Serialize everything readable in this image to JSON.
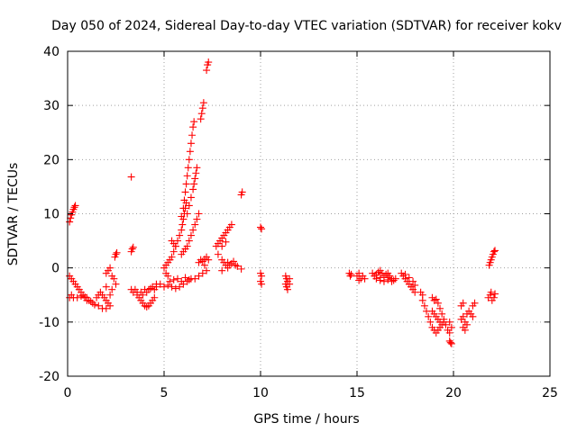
{
  "chart_data": {
    "type": "scatter",
    "title": "Day 050 of 2024, Sidereal Day-to-day VTEC variation (SDTVAR) for receiver kokv",
    "xlabel": "GPS time / hours",
    "ylabel": "SDTVAR / TECUs",
    "xlim": [
      0,
      25
    ],
    "ylim": [
      -20,
      40
    ],
    "xticks": [
      "0",
      "5",
      "10",
      "15",
      "20",
      "25"
    ],
    "yticks": [
      "-20",
      "-10",
      "0",
      "10",
      "20",
      "30",
      "40"
    ],
    "grid": true,
    "marker": "+",
    "color": "#ff0000",
    "series": [
      {
        "name": "SDTVAR",
        "points": [
          [
            0.1,
            8.5
          ],
          [
            0.15,
            9.2
          ],
          [
            0.2,
            9.8
          ],
          [
            0.25,
            10.3
          ],
          [
            0.3,
            10.8
          ],
          [
            0.35,
            11.2
          ],
          [
            0.4,
            11.5
          ],
          [
            0.1,
            -1.5
          ],
          [
            0.2,
            -2
          ],
          [
            0.3,
            -2.5
          ],
          [
            0.4,
            -3
          ],
          [
            0.5,
            -3.5
          ],
          [
            0.6,
            -4
          ],
          [
            0.7,
            -4.5
          ],
          [
            0.8,
            -5
          ],
          [
            0.9,
            -5.5
          ],
          [
            1.0,
            -6
          ],
          [
            0.1,
            -5.5
          ],
          [
            0.2,
            -5
          ],
          [
            0.3,
            -5.5
          ],
          [
            0.5,
            -5.5
          ],
          [
            0.7,
            -5.2
          ],
          [
            0.9,
            -5.4
          ],
          [
            1.0,
            -5.5
          ],
          [
            1.1,
            -6
          ],
          [
            1.2,
            -6.2
          ],
          [
            1.3,
            -6.5
          ],
          [
            1.4,
            -6.8
          ],
          [
            1.5,
            -5.5
          ],
          [
            1.6,
            -5
          ],
          [
            1.7,
            -4.5
          ],
          [
            1.8,
            -5
          ],
          [
            1.9,
            -5.5
          ],
          [
            2.0,
            -6
          ],
          [
            2.1,
            -6.5
          ],
          [
            1.6,
            -7
          ],
          [
            1.8,
            -7.5
          ],
          [
            2.0,
            -7.5
          ],
          [
            2.2,
            -7
          ],
          [
            2.0,
            -1
          ],
          [
            2.1,
            -0.5
          ],
          [
            2.2,
            0
          ],
          [
            2.3,
            -1.5
          ],
          [
            2.4,
            -2
          ],
          [
            2.5,
            -3
          ],
          [
            2.45,
            2
          ],
          [
            2.5,
            2.5
          ],
          [
            2.55,
            2.8
          ],
          [
            2.3,
            -4
          ],
          [
            2.2,
            -5
          ],
          [
            2.0,
            -3.5
          ],
          [
            3.3,
            16.8
          ],
          [
            3.3,
            3
          ],
          [
            3.35,
            3.5
          ],
          [
            3.4,
            3.8
          ],
          [
            3.3,
            -4
          ],
          [
            3.4,
            -4.5
          ],
          [
            3.5,
            -4
          ],
          [
            3.6,
            -4.5
          ],
          [
            3.6,
            -5
          ],
          [
            3.7,
            -5.5
          ],
          [
            3.8,
            -6
          ],
          [
            3.9,
            -6.5
          ],
          [
            4.0,
            -7
          ],
          [
            4.1,
            -7.2
          ],
          [
            4.2,
            -7
          ],
          [
            4.3,
            -6.5
          ],
          [
            4.4,
            -6
          ],
          [
            4.5,
            -5.5
          ],
          [
            3.8,
            -4.5
          ],
          [
            3.9,
            -5
          ],
          [
            4.0,
            -4
          ],
          [
            4.1,
            -4.5
          ],
          [
            4.2,
            -4
          ],
          [
            4.3,
            -3.8
          ],
          [
            4.4,
            -3.5
          ],
          [
            4.5,
            -4
          ],
          [
            4.6,
            -3.5
          ],
          [
            5.0,
            0
          ],
          [
            5.1,
            0.5
          ],
          [
            5.2,
            1
          ],
          [
            5.3,
            1.5
          ],
          [
            5.4,
            2
          ],
          [
            5.5,
            3
          ],
          [
            5.6,
            4
          ],
          [
            5.1,
            -1
          ],
          [
            5.2,
            -1.5
          ],
          [
            4.6,
            -3
          ],
          [
            4.8,
            -3
          ],
          [
            5.0,
            -3.5
          ],
          [
            5.2,
            -3.2
          ],
          [
            5.4,
            -3.5
          ],
          [
            5.6,
            -3.8
          ],
          [
            5.8,
            -3.5
          ],
          [
            6.0,
            -3
          ],
          [
            6.2,
            -2.5
          ],
          [
            6.4,
            -2
          ],
          [
            6.6,
            -2
          ],
          [
            6.8,
            -1.5
          ],
          [
            7.0,
            -1
          ],
          [
            7.2,
            -0.5
          ],
          [
            5.3,
            -2.5
          ],
          [
            5.5,
            -2.2
          ],
          [
            5.7,
            -2
          ],
          [
            5.9,
            -2.5
          ],
          [
            6.1,
            -1.8
          ],
          [
            6.3,
            -2.2
          ],
          [
            5.4,
            5
          ],
          [
            5.5,
            4.5
          ],
          [
            5.6,
            4
          ],
          [
            5.7,
            5
          ],
          [
            5.8,
            6
          ],
          [
            5.9,
            7
          ],
          [
            5.95,
            8
          ],
          [
            6.0,
            9
          ],
          [
            6.05,
            10
          ],
          [
            6.1,
            11
          ],
          [
            6.15,
            12
          ],
          [
            5.9,
            9.5
          ],
          [
            6.0,
            11
          ],
          [
            6.05,
            12.5
          ],
          [
            6.1,
            14
          ],
          [
            6.15,
            15.5
          ],
          [
            6.2,
            17
          ],
          [
            6.25,
            18.5
          ],
          [
            6.3,
            20
          ],
          [
            6.35,
            21.5
          ],
          [
            6.4,
            23
          ],
          [
            6.45,
            24.5
          ],
          [
            6.5,
            26
          ],
          [
            6.55,
            27
          ],
          [
            6.2,
            10
          ],
          [
            6.3,
            11.5
          ],
          [
            6.4,
            13
          ],
          [
            6.5,
            14.5
          ],
          [
            6.55,
            15.5
          ],
          [
            6.6,
            16.5
          ],
          [
            6.65,
            17.5
          ],
          [
            6.7,
            18.5
          ],
          [
            5.9,
            2.5
          ],
          [
            6.0,
            3
          ],
          [
            6.1,
            3.5
          ],
          [
            6.2,
            4
          ],
          [
            6.3,
            5
          ],
          [
            6.4,
            6
          ],
          [
            6.5,
            7
          ],
          [
            6.6,
            8
          ],
          [
            6.7,
            9
          ],
          [
            6.8,
            10
          ],
          [
            6.9,
            27.5
          ],
          [
            6.95,
            28.5
          ],
          [
            7.0,
            29.5
          ],
          [
            7.05,
            30.5
          ],
          [
            7.2,
            36.5
          ],
          [
            7.25,
            37.5
          ],
          [
            7.3,
            38
          ],
          [
            6.8,
            1
          ],
          [
            6.9,
            1.5
          ],
          [
            7.0,
            1.2
          ],
          [
            7.1,
            1.6
          ],
          [
            7.2,
            2
          ],
          [
            7.3,
            1.5
          ],
          [
            7.1,
            0.5
          ],
          [
            7.7,
            4
          ],
          [
            7.8,
            4.5
          ],
          [
            7.9,
            5
          ],
          [
            8.0,
            5.5
          ],
          [
            8.1,
            6
          ],
          [
            8.2,
            6.5
          ],
          [
            8.3,
            7
          ],
          [
            8.4,
            7.5
          ],
          [
            8.5,
            8
          ],
          [
            8.0,
            4
          ],
          [
            8.2,
            4.8
          ],
          [
            7.8,
            2.5
          ],
          [
            8.0,
            1.5
          ],
          [
            8.1,
            1
          ],
          [
            8.2,
            0.5
          ],
          [
            8.3,
            1
          ],
          [
            8.4,
            0.5
          ],
          [
            8.5,
            0.8
          ],
          [
            8.6,
            1.2
          ],
          [
            8.7,
            0.5
          ],
          [
            8.8,
            0.3
          ],
          [
            9.0,
            -0.2
          ],
          [
            8.0,
            -0.5
          ],
          [
            8.3,
            0
          ],
          [
            9.0,
            13.5
          ],
          [
            9.05,
            14
          ],
          [
            10.0,
            7.5
          ],
          [
            10.05,
            7.2
          ],
          [
            10.0,
            -1
          ],
          [
            10.05,
            -1.5
          ],
          [
            10.0,
            -2.5
          ],
          [
            10.05,
            -3
          ],
          [
            11.3,
            -1.5
          ],
          [
            11.35,
            -2
          ],
          [
            11.4,
            -2.5
          ],
          [
            11.3,
            -3
          ],
          [
            11.35,
            -3.5
          ],
          [
            11.4,
            -4
          ],
          [
            11.5,
            -2
          ],
          [
            11.5,
            -3
          ],
          [
            14.6,
            -1
          ],
          [
            14.65,
            -1.5
          ],
          [
            14.7,
            -1.2
          ],
          [
            15.0,
            -1.5
          ],
          [
            15.1,
            -1
          ],
          [
            15.2,
            -2
          ],
          [
            15.3,
            -1.5
          ],
          [
            15.4,
            -2
          ],
          [
            15.1,
            -2.3
          ],
          [
            15.8,
            -1
          ],
          [
            15.9,
            -1.5
          ],
          [
            16.0,
            -1.2
          ],
          [
            16.1,
            -0.8
          ],
          [
            16.2,
            -0.5
          ],
          [
            16.3,
            -1
          ],
          [
            16.4,
            -1.5
          ],
          [
            16.5,
            -1.2
          ],
          [
            16.6,
            -1
          ],
          [
            16.7,
            -1.5
          ],
          [
            16.8,
            -2
          ],
          [
            16.9,
            -2.3
          ],
          [
            17.0,
            -2
          ],
          [
            16.0,
            -2
          ],
          [
            16.2,
            -2.3
          ],
          [
            16.4,
            -2.5
          ],
          [
            16.6,
            -2.2
          ],
          [
            16.8,
            -2.5
          ],
          [
            16.2,
            -1.8
          ],
          [
            16.6,
            -1.8
          ],
          [
            17.3,
            -1
          ],
          [
            17.4,
            -1.5
          ],
          [
            17.5,
            -2
          ],
          [
            17.6,
            -2.5
          ],
          [
            17.7,
            -3
          ],
          [
            17.8,
            -3.5
          ],
          [
            17.9,
            -4
          ],
          [
            18.0,
            -4.5
          ],
          [
            17.5,
            -1.2
          ],
          [
            17.7,
            -1.8
          ],
          [
            17.9,
            -2.5
          ],
          [
            18.0,
            -3.2
          ],
          [
            18.3,
            -4.5
          ],
          [
            18.4,
            -5
          ],
          [
            18.4,
            -6
          ],
          [
            18.5,
            -7
          ],
          [
            18.6,
            -8
          ],
          [
            18.7,
            -9
          ],
          [
            18.8,
            -10
          ],
          [
            18.9,
            -11
          ],
          [
            19.0,
            -11.5
          ],
          [
            19.1,
            -12
          ],
          [
            19.2,
            -11.5
          ],
          [
            19.3,
            -11
          ],
          [
            18.9,
            -5.5
          ],
          [
            19.0,
            -6
          ],
          [
            19.1,
            -5.8
          ],
          [
            19.2,
            -6.5
          ],
          [
            19.3,
            -7.5
          ],
          [
            19.4,
            -8.5
          ],
          [
            19.5,
            -9.5
          ],
          [
            19.6,
            -10.5
          ],
          [
            19.7,
            -11.5
          ],
          [
            19.8,
            -12
          ],
          [
            18.9,
            -8
          ],
          [
            19.0,
            -8.5
          ],
          [
            19.1,
            -9
          ],
          [
            19.2,
            -9.5
          ],
          [
            19.3,
            -10
          ],
          [
            19.4,
            -10.5
          ],
          [
            19.5,
            -10
          ],
          [
            19.8,
            -10
          ],
          [
            19.9,
            -11
          ],
          [
            19.8,
            -13.5
          ],
          [
            19.9,
            -14
          ],
          [
            19.85,
            -13.8
          ],
          [
            20.4,
            -9.5
          ],
          [
            20.5,
            -9
          ],
          [
            20.6,
            -10
          ],
          [
            20.5,
            -11
          ],
          [
            20.6,
            -11.5
          ],
          [
            20.7,
            -10.5
          ],
          [
            20.4,
            -7
          ],
          [
            20.5,
            -6.5
          ],
          [
            20.7,
            -8.5
          ],
          [
            20.8,
            -8
          ],
          [
            20.9,
            -8.5
          ],
          [
            21.0,
            -9
          ],
          [
            21.0,
            -7
          ],
          [
            21.1,
            -6.5
          ],
          [
            21.85,
            0.5
          ],
          [
            21.9,
            1
          ],
          [
            21.95,
            1.5
          ],
          [
            22.0,
            2
          ],
          [
            22.05,
            2.5
          ],
          [
            22.1,
            3
          ],
          [
            22.15,
            3.2
          ],
          [
            21.8,
            -5.5
          ],
          [
            21.9,
            -5
          ],
          [
            22.0,
            -6
          ],
          [
            22.1,
            -5.5
          ],
          [
            22.15,
            -4.8
          ],
          [
            21.95,
            -4.5
          ]
        ]
      }
    ]
  }
}
